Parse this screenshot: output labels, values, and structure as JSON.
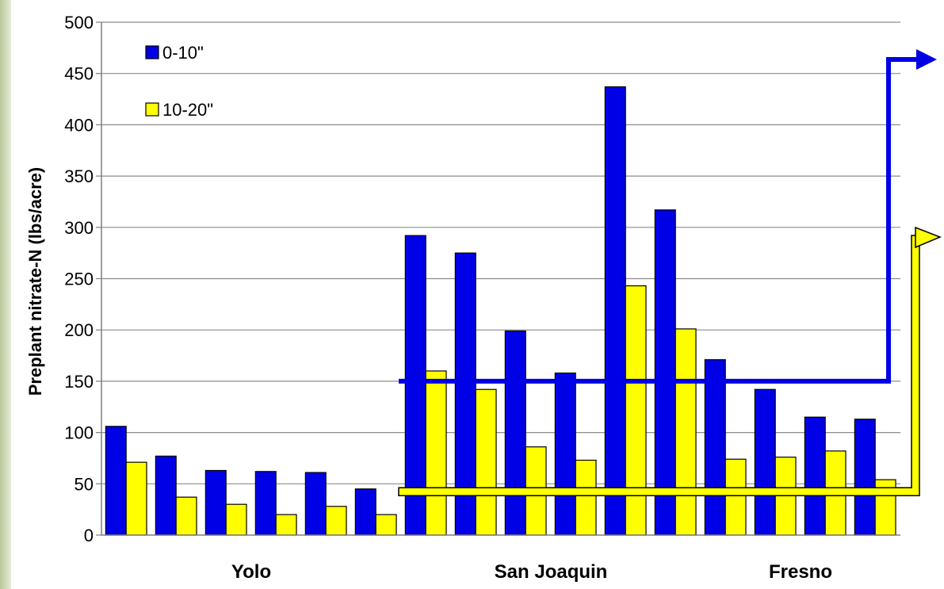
{
  "chart_data": {
    "type": "bar",
    "ylabel": "Preplant nitrate-N (lbs/acre)",
    "ylim": [
      0,
      500
    ],
    "yticks": [
      0,
      50,
      100,
      150,
      200,
      250,
      300,
      350,
      400,
      450,
      500
    ],
    "grid": true,
    "legend_placement": "top-left",
    "groups": [
      {
        "label": "Yolo",
        "sites": 6
      },
      {
        "label": "San Joaquin",
        "sites": 6
      },
      {
        "label": "Fresno",
        "sites": 4
      }
    ],
    "series": [
      {
        "name": "0-10\"",
        "color": "#0000e6",
        "values": [
          106,
          77,
          63,
          62,
          61,
          45,
          292,
          275,
          199,
          158,
          437,
          317,
          171,
          142,
          115,
          113
        ]
      },
      {
        "name": "10-20\"",
        "color": "#ffff00",
        "values": [
          71,
          37,
          30,
          20,
          28,
          20,
          160,
          142,
          86,
          73,
          243,
          201,
          74,
          76,
          82,
          54
        ]
      }
    ],
    "annotations": [
      {
        "type": "threshold-line",
        "value": 150,
        "color": "#0000e6",
        "arrow": "arrow-right"
      },
      {
        "type": "threshold-line",
        "value": 50,
        "color": "#ffff00",
        "arrow": "arrow-right"
      }
    ]
  }
}
